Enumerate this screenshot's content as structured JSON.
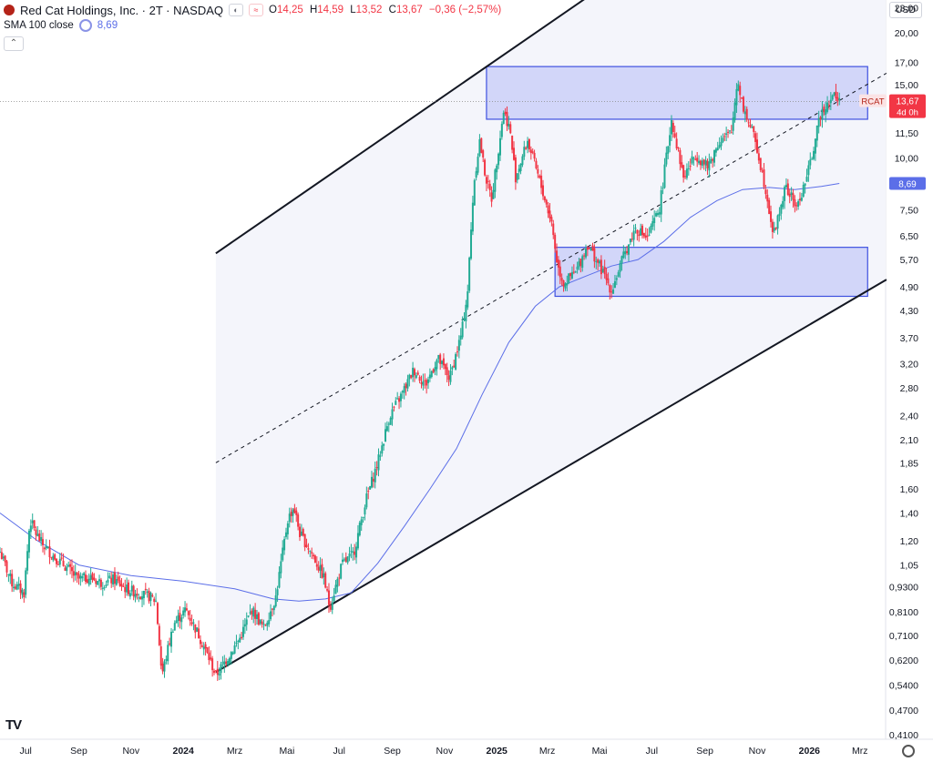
{
  "header": {
    "title": "Red Cat Holdings, Inc. · 2T · NASDAQ",
    "open_label": "O",
    "open_value": "14,25",
    "high_label": "H",
    "high_value": "14,59",
    "low_label": "L",
    "low_value": "13,52",
    "close_label": "C",
    "close_value": "13,67",
    "change": "−0,36 (−2,57%)"
  },
  "indicator": {
    "name": "SMA 100 close",
    "value": "8,69"
  },
  "currency": "USD",
  "colors": {
    "up": "#22ab94",
    "down": "#f23645",
    "sma": "#5b6ee8",
    "zone": "#6b7cf5",
    "channel": "#131722",
    "axis_text": "#131722",
    "label_bg": "#f23645"
  },
  "price_label": {
    "ticker": "RCAT",
    "price": "13,67",
    "countdown": "4d 0h"
  },
  "sma_label": "8,69",
  "chart_data": {
    "type": "candlestick",
    "scale": "log",
    "ylim": [
      0.4,
      24
    ],
    "y_ticks": [
      "23,00",
      "20,00",
      "17,00",
      "15,00",
      "13,00",
      "11,50",
      "10,00",
      "8,70",
      "7,50",
      "6,50",
      "5,70",
      "4,90",
      "4,30",
      "3,70",
      "3,20",
      "2,80",
      "2,40",
      "2,10",
      "1,85",
      "1,60",
      "1,40",
      "1,20",
      "1,05",
      "0,9300",
      "0,8100",
      "0,7100",
      "0,6200",
      "0,5400",
      "0,4700",
      "0,4100"
    ],
    "x_ticks": [
      "Jul",
      "Sep",
      "Nov",
      "2024",
      "Mrz",
      "Mai",
      "Jul",
      "Sep",
      "Nov",
      "2025",
      "Mrz",
      "Mai",
      "Jul",
      "Sep",
      "Nov",
      "2026",
      "Mrz"
    ],
    "x_range": [
      "2023-06-01",
      "2026-03-31"
    ],
    "path_points": [
      [
        "2023-06-01",
        1.13
      ],
      [
        "2023-06-15",
        0.95
      ],
      [
        "2023-06-29",
        0.9
      ],
      [
        "2023-07-06",
        1.35
      ],
      [
        "2023-07-13",
        1.25
      ],
      [
        "2023-07-20",
        1.18
      ],
      [
        "2023-08-03",
        1.1
      ],
      [
        "2023-08-17",
        1.04
      ],
      [
        "2023-08-31",
        0.97
      ],
      [
        "2023-09-14",
        0.98
      ],
      [
        "2023-09-28",
        0.95
      ],
      [
        "2023-10-12",
        0.97
      ],
      [
        "2023-10-26",
        0.92
      ],
      [
        "2023-11-09",
        0.9
      ],
      [
        "2023-11-23",
        0.88
      ],
      [
        "2023-11-30",
        0.86
      ],
      [
        "2023-12-07",
        0.57
      ],
      [
        "2023-12-14",
        0.66
      ],
      [
        "2023-12-21",
        0.76
      ],
      [
        "2024-01-04",
        0.82
      ],
      [
        "2024-01-18",
        0.72
      ],
      [
        "2024-02-01",
        0.62
      ],
      [
        "2024-02-08",
        0.57
      ],
      [
        "2024-02-22",
        0.63
      ],
      [
        "2024-03-07",
        0.7
      ],
      [
        "2024-03-21",
        0.82
      ],
      [
        "2024-04-04",
        0.74
      ],
      [
        "2024-04-18",
        0.88
      ],
      [
        "2024-05-02",
        1.35
      ],
      [
        "2024-05-09",
        1.45
      ],
      [
        "2024-05-16",
        1.25
      ],
      [
        "2024-05-30",
        1.12
      ],
      [
        "2024-06-13",
        0.98
      ],
      [
        "2024-06-20",
        0.83
      ],
      [
        "2024-07-04",
        1.05
      ],
      [
        "2024-07-18",
        1.12
      ],
      [
        "2024-08-01",
        1.5
      ],
      [
        "2024-08-15",
        1.85
      ],
      [
        "2024-08-29",
        2.4
      ],
      [
        "2024-09-12",
        2.7
      ],
      [
        "2024-09-26",
        3.1
      ],
      [
        "2024-10-10",
        2.85
      ],
      [
        "2024-10-24",
        3.3
      ],
      [
        "2024-11-07",
        2.95
      ],
      [
        "2024-11-21",
        3.8
      ],
      [
        "2024-11-28",
        4.8
      ],
      [
        "2024-12-05",
        8.6
      ],
      [
        "2024-12-12",
        11.0
      ],
      [
        "2024-12-19",
        9.0
      ],
      [
        "2024-12-26",
        8.0
      ],
      [
        "2025-01-09",
        13.0
      ],
      [
        "2025-01-16",
        11.8
      ],
      [
        "2025-01-23",
        9.0
      ],
      [
        "2025-02-06",
        11.0
      ],
      [
        "2025-02-20",
        8.8
      ],
      [
        "2025-03-06",
        7.0
      ],
      [
        "2025-03-13",
        5.5
      ],
      [
        "2025-03-20",
        5.0
      ],
      [
        "2025-04-03",
        5.3
      ],
      [
        "2025-04-17",
        6.2
      ],
      [
        "2025-05-01",
        5.5
      ],
      [
        "2025-05-15",
        4.8
      ],
      [
        "2025-05-29",
        5.8
      ],
      [
        "2025-06-12",
        6.8
      ],
      [
        "2025-06-26",
        6.4
      ],
      [
        "2025-07-10",
        7.6
      ],
      [
        "2025-07-24",
        12.4
      ],
      [
        "2025-08-07",
        9.0
      ],
      [
        "2025-08-21",
        10.2
      ],
      [
        "2025-09-04",
        9.5
      ],
      [
        "2025-09-18",
        11.0
      ],
      [
        "2025-10-02",
        11.5
      ],
      [
        "2025-10-09",
        15.5
      ],
      [
        "2025-10-16",
        13.2
      ],
      [
        "2025-10-30",
        11.0
      ],
      [
        "2025-11-13",
        8.0
      ],
      [
        "2025-11-20",
        6.5
      ],
      [
        "2025-12-04",
        8.5
      ],
      [
        "2025-12-18",
        7.6
      ],
      [
        "2026-01-01",
        9.5
      ],
      [
        "2026-01-15",
        13.0
      ],
      [
        "2026-01-29",
        14.2
      ],
      [
        "2026-02-05",
        13.67
      ]
    ],
    "sma_points": [
      [
        "2023-06-01",
        1.4
      ],
      [
        "2023-07-15",
        1.2
      ],
      [
        "2023-09-01",
        1.05
      ],
      [
        "2023-11-01",
        0.99
      ],
      [
        "2024-01-01",
        0.96
      ],
      [
        "2024-03-01",
        0.92
      ],
      [
        "2024-04-15",
        0.87
      ],
      [
        "2024-05-15",
        0.86
      ],
      [
        "2024-06-15",
        0.87
      ],
      [
        "2024-07-15",
        0.9
      ],
      [
        "2024-08-15",
        1.06
      ],
      [
        "2024-09-15",
        1.3
      ],
      [
        "2024-10-15",
        1.6
      ],
      [
        "2024-11-15",
        2.0
      ],
      [
        "2024-12-15",
        2.7
      ],
      [
        "2025-01-15",
        3.6
      ],
      [
        "2025-02-15",
        4.4
      ],
      [
        "2025-03-15",
        4.9
      ],
      [
        "2025-04-15",
        5.2
      ],
      [
        "2025-05-15",
        5.5
      ],
      [
        "2025-06-15",
        5.7
      ],
      [
        "2025-07-15",
        6.3
      ],
      [
        "2025-08-15",
        7.2
      ],
      [
        "2025-09-15",
        7.9
      ],
      [
        "2025-10-15",
        8.4
      ],
      [
        "2025-11-15",
        8.5
      ],
      [
        "2025-12-15",
        8.4
      ],
      [
        "2026-01-15",
        8.55
      ],
      [
        "2026-02-05",
        8.69
      ]
    ],
    "channel_upper": [
      [
        "2024-02-08",
        5.9
      ],
      [
        "2025-09-15",
        40.0
      ]
    ],
    "channel_lower": [
      [
        "2024-02-08",
        0.58
      ],
      [
        "2026-04-01",
        5.1
      ]
    ],
    "channel_mid": [
      [
        "2024-02-08",
        1.85
      ],
      [
        "2026-04-01",
        16.0
      ]
    ],
    "channel_fill_start": "2024-02-08",
    "zones": [
      {
        "from": "2024-12-20",
        "to": "2026-03-10",
        "low": 12.4,
        "high": 16.6
      },
      {
        "from": "2025-03-10",
        "to": "2026-03-10",
        "low": 4.65,
        "high": 6.1
      }
    ],
    "last_price": 13.67,
    "sma_last": 8.69
  }
}
